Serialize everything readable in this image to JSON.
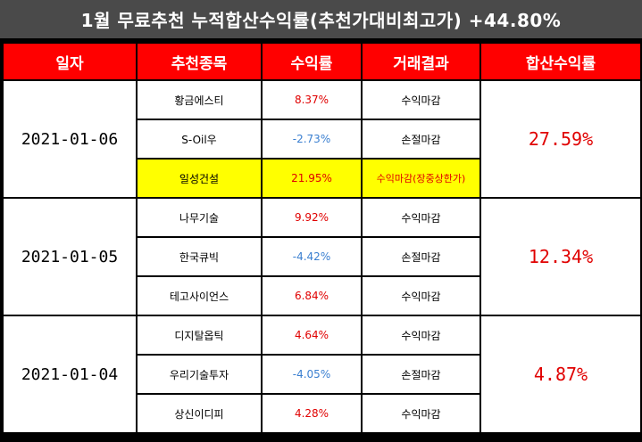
{
  "title": "1월 무료추천 누적합산수익률(추천가대비최고가) +44.80%",
  "headers": [
    "일자",
    "추천종목",
    "수익률",
    "거래결과",
    "합산수익률"
  ],
  "groups": [
    {
      "date": "2021-01-06",
      "total": "27.59%",
      "rows": [
        {
          "name": "황금에스티",
          "rate": "8.37%",
          "result": "수익마감",
          "sign": "pos"
        },
        {
          "name": "S-Oil우",
          "rate": "-2.73%",
          "result": "손절마감",
          "sign": "neg"
        },
        {
          "name": "일성건설",
          "rate": "21.95%",
          "result": "수익마감(장중상한가)",
          "sign": "pos",
          "highlight": true
        }
      ]
    },
    {
      "date": "2021-01-05",
      "total": "12.34%",
      "rows": [
        {
          "name": "나무기술",
          "rate": "9.92%",
          "result": "수익마감",
          "sign": "pos"
        },
        {
          "name": "한국큐빅",
          "rate": "-4.42%",
          "result": "손절마감",
          "sign": "neg"
        },
        {
          "name": "테고사이언스",
          "rate": "6.84%",
          "result": "수익마감",
          "sign": "pos"
        }
      ]
    },
    {
      "date": "2021-01-04",
      "total": "4.87%",
      "rows": [
        {
          "name": "디지탈옵틱",
          "rate": "4.64%",
          "result": "수익마감",
          "sign": "pos"
        },
        {
          "name": "우리기술투자",
          "rate": "-4.05%",
          "result": "손절마감",
          "sign": "neg"
        },
        {
          "name": "상신이디피",
          "rate": "4.28%",
          "result": "수익마감",
          "sign": "pos"
        }
      ]
    }
  ],
  "colors": {
    "header_bg": "#ff0000",
    "title_bg": "#4a4a4a",
    "positive": "#e00000",
    "negative": "#3a7fd0",
    "highlight": "#ffff00"
  }
}
